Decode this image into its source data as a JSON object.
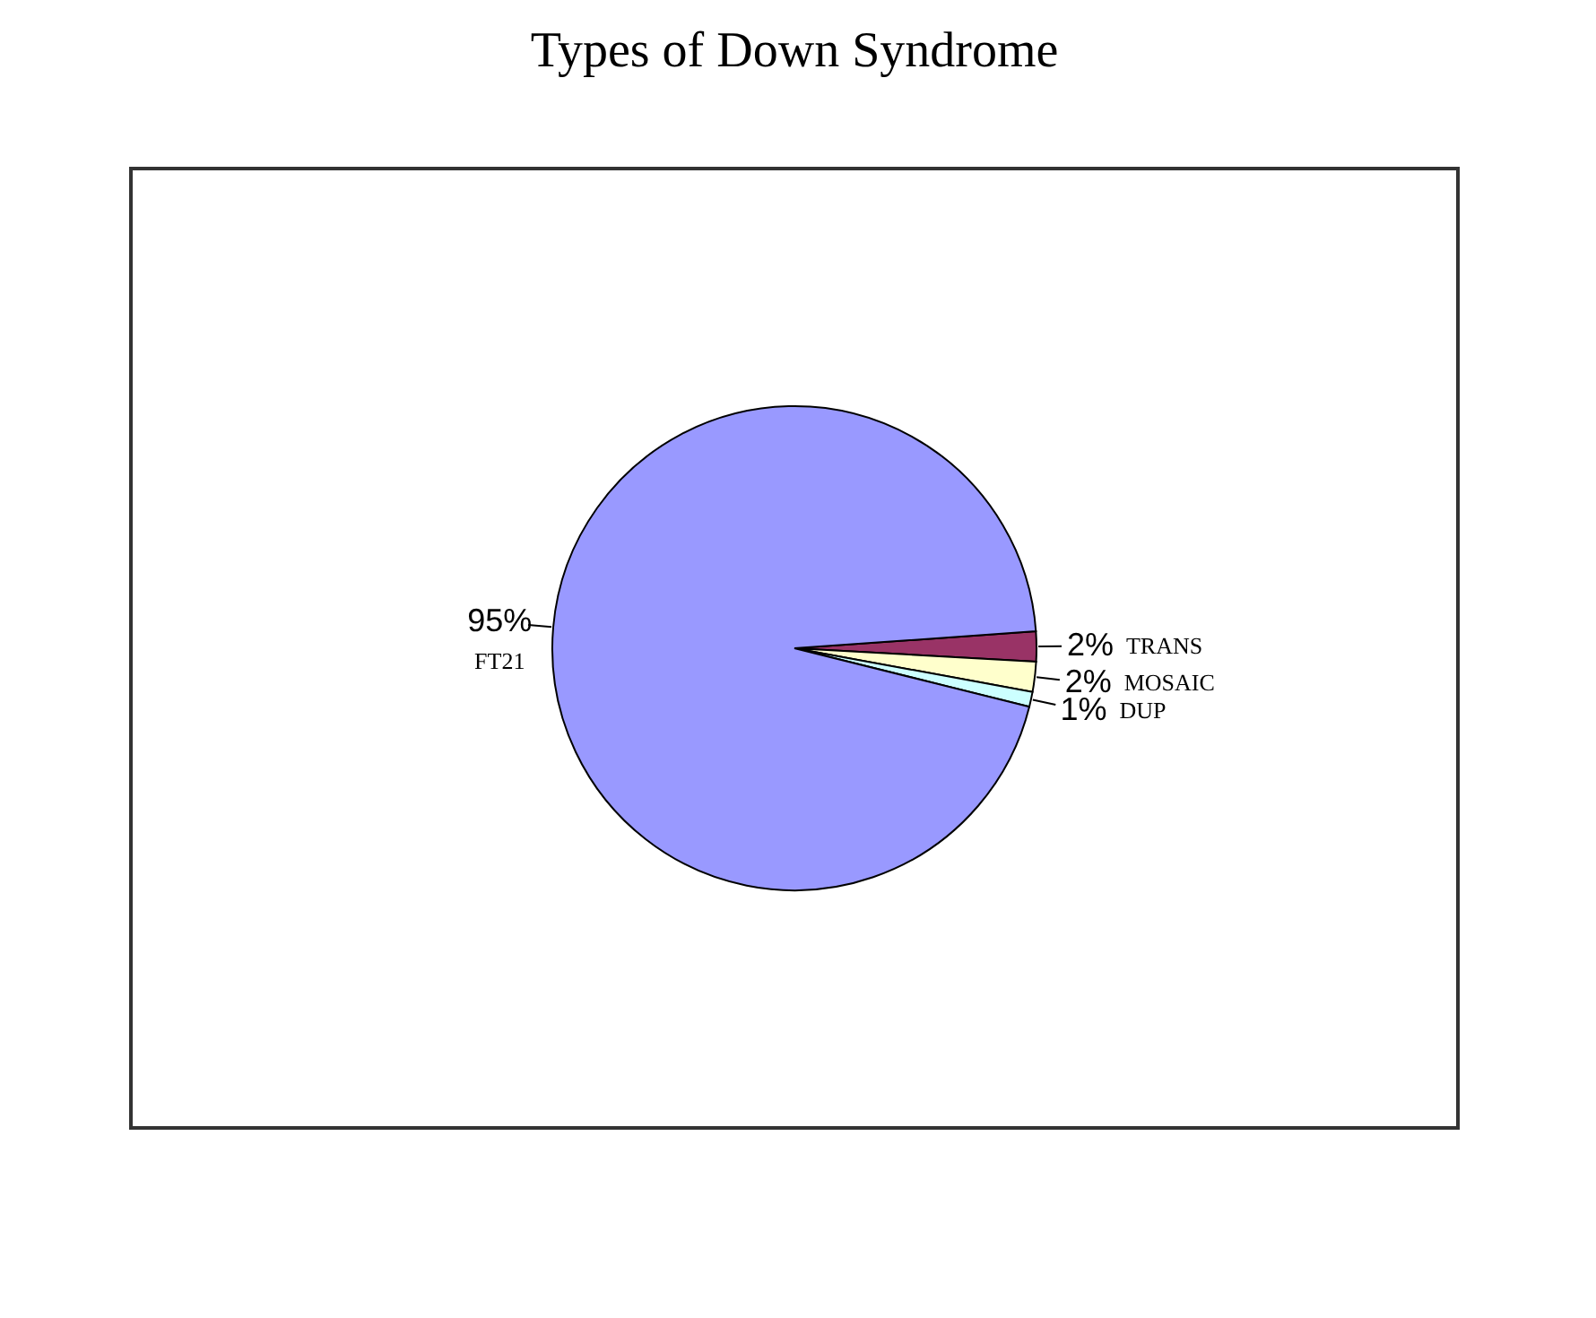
{
  "chart_data": {
    "type": "pie",
    "title": "Types of Down Syndrome",
    "categories": [
      "TRANS",
      "MOSAIC",
      "DUP",
      "FT21"
    ],
    "values": [
      2,
      2,
      1,
      95
    ],
    "colors": [
      "#993366",
      "#ffffcc",
      "#ccffff",
      "#9999ff"
    ],
    "value_labels": [
      "2%",
      "2%",
      "1%",
      "95%"
    ],
    "legend": false
  }
}
